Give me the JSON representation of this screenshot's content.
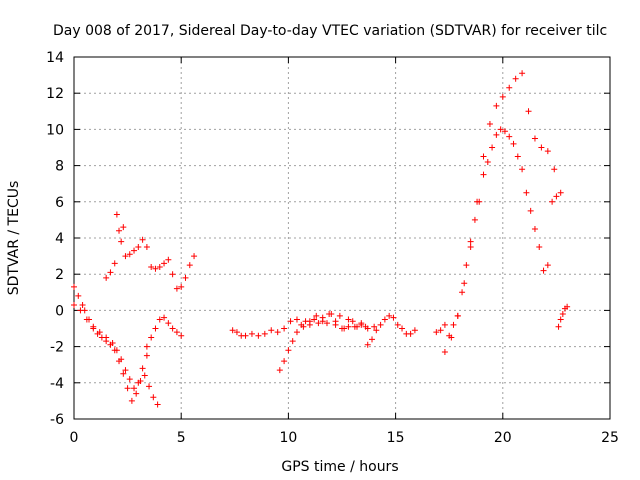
{
  "chart_data": {
    "type": "scatter",
    "title": "Day 008 of 2017, Sidereal Day-to-day VTEC variation (SDTVAR) for receiver tilc",
    "xlabel": "GPS time / hours",
    "ylabel": "SDTVAR / TECUs",
    "xlim": [
      0,
      25
    ],
    "ylim": [
      -6,
      14
    ],
    "x_ticks": [
      0,
      5,
      10,
      15,
      20,
      25
    ],
    "y_ticks": [
      -6,
      -4,
      -2,
      0,
      2,
      4,
      6,
      8,
      10,
      12,
      14
    ],
    "grid": true,
    "marker": "plus",
    "color": "#ff0000",
    "series": [
      {
        "x": [
          0.0,
          0.2,
          0.4,
          0.5,
          0.7,
          0.9,
          1.1,
          1.3,
          1.5,
          1.7,
          1.9,
          2.1,
          2.3,
          2.5,
          2.7,
          2.9,
          3.1,
          3.3,
          3.5,
          3.7,
          3.9
        ],
        "y": [
          1.3,
          0.8,
          0.3,
          0.0,
          -0.5,
          -1.0,
          -1.3,
          -1.5,
          -1.7,
          -1.9,
          -2.2,
          -2.8,
          -3.5,
          -4.3,
          -5.0,
          -4.6,
          -3.9,
          -3.6,
          -4.2,
          -4.8,
          -5.2
        ]
      },
      {
        "x": [
          0.0,
          0.3,
          0.6,
          0.9,
          1.2,
          1.5,
          1.8,
          2.0,
          2.2,
          2.4,
          2.6,
          2.8,
          3.0,
          3.2,
          3.4
        ],
        "y": [
          0.3,
          0.0,
          -0.5,
          -0.9,
          -1.2,
          -1.5,
          -1.8,
          -2.2,
          -2.7,
          -3.3,
          -3.8,
          -4.3,
          -4.0,
          -3.2,
          -2.5
        ]
      },
      {
        "x": [
          3.4,
          3.6,
          3.8,
          4.0,
          4.2,
          4.4,
          4.6,
          4.8,
          5.0
        ],
        "y": [
          -2.0,
          -1.5,
          -1.0,
          -0.5,
          -0.4,
          -0.7,
          -1.0,
          -1.2,
          -1.4
        ]
      },
      {
        "x": [
          1.5,
          1.7,
          1.9,
          2.0,
          2.1,
          2.2,
          2.3,
          2.4,
          2.6,
          2.8,
          3.0,
          3.2,
          3.4,
          3.6,
          3.8,
          4.0,
          4.2,
          4.4,
          4.6,
          4.8,
          5.0,
          5.2,
          5.4,
          5.6
        ],
        "y": [
          1.8,
          2.1,
          2.6,
          5.3,
          4.4,
          3.8,
          4.6,
          3.0,
          3.1,
          3.3,
          3.5,
          3.9,
          3.5,
          2.4,
          2.3,
          2.4,
          2.6,
          2.8,
          2.0,
          1.2,
          1.3,
          1.8,
          2.5,
          3.0
        ]
      },
      {
        "x": [
          7.4,
          7.6,
          7.8,
          8.0,
          8.3,
          8.6,
          8.9,
          9.2,
          9.5,
          9.8,
          10.1,
          10.4,
          10.7,
          11.0,
          11.3,
          11.6,
          11.9,
          12.2,
          12.5,
          12.8,
          13.1,
          13.4,
          13.7,
          14.0
        ],
        "y": [
          -1.1,
          -1.2,
          -1.4,
          -1.4,
          -1.3,
          -1.4,
          -1.3,
          -1.1,
          -1.2,
          -1.0,
          -0.6,
          -0.5,
          -0.9,
          -0.6,
          -0.3,
          -0.6,
          -0.2,
          -0.8,
          -1.0,
          -0.5,
          -0.9,
          -0.8,
          -1.0,
          -0.9
        ]
      },
      {
        "x": [
          9.6,
          9.8,
          10.0,
          10.2,
          10.4,
          10.6,
          10.8,
          11.0,
          11.2,
          11.4,
          11.6,
          11.8,
          12.0,
          12.2,
          12.4,
          12.6,
          12.8,
          13.0,
          13.2,
          13.4,
          13.6
        ],
        "y": [
          -3.3,
          -2.8,
          -2.2,
          -1.7,
          -1.2,
          -0.8,
          -0.6,
          -0.8,
          -0.5,
          -0.7,
          -0.4,
          -0.7,
          -0.2,
          -0.6,
          -0.3,
          -1.0,
          -0.9,
          -0.6,
          -0.9,
          -0.7,
          -0.9
        ]
      },
      {
        "x": [
          13.7,
          13.9,
          14.1,
          14.3,
          14.5,
          14.7,
          14.9,
          15.1,
          15.3,
          15.5,
          15.7,
          15.9
        ],
        "y": [
          -1.9,
          -1.6,
          -1.1,
          -0.8,
          -0.5,
          -0.3,
          -0.4,
          -0.8,
          -1.0,
          -1.3,
          -1.3,
          -1.1
        ]
      },
      {
        "x": [
          16.9,
          17.1,
          17.3,
          17.5,
          17.7,
          17.9,
          18.1,
          18.3,
          18.5,
          18.7,
          18.9,
          19.1,
          19.3,
          19.5,
          19.7,
          19.9,
          20.1,
          20.3,
          20.5,
          20.7,
          20.9,
          21.1,
          21.3,
          21.5,
          21.7,
          21.9,
          22.1,
          22.3,
          22.5,
          22.7
        ],
        "y": [
          -1.2,
          -1.1,
          -0.8,
          -1.4,
          -0.8,
          -0.3,
          1.0,
          2.5,
          3.5,
          5.0,
          6.0,
          7.5,
          8.2,
          9.0,
          9.7,
          10.0,
          9.9,
          9.6,
          9.2,
          8.5,
          7.8,
          6.5,
          5.5,
          4.5,
          3.5,
          2.2,
          2.5,
          6.0,
          6.3,
          6.5
        ]
      },
      {
        "x": [
          17.3,
          17.6,
          17.9,
          18.2,
          18.5,
          18.8,
          19.1,
          19.4,
          19.7,
          20.0,
          20.3,
          20.6,
          20.9,
          21.2,
          21.5,
          21.8,
          22.1,
          22.4
        ],
        "y": [
          -2.3,
          -1.5,
          -0.3,
          1.5,
          3.8,
          6.0,
          8.5,
          10.3,
          11.3,
          11.8,
          12.3,
          12.8,
          13.1,
          11.0,
          9.5,
          9.0,
          8.8,
          7.8
        ]
      },
      {
        "x": [
          22.6,
          22.7,
          22.8,
          22.9,
          23.0
        ],
        "y": [
          -0.9,
          -0.5,
          -0.2,
          0.1,
          0.2
        ]
      }
    ]
  }
}
